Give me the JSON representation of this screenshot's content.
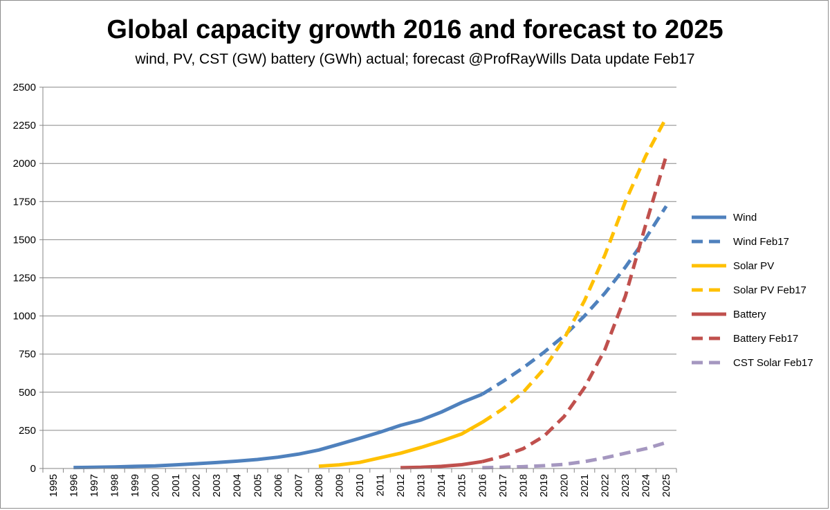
{
  "chart_data": {
    "type": "line",
    "title": "Global capacity growth 2016 and forecast to 2025",
    "subtitle": "wind, PV, CST (GW) battery (GWh) actual; forecast @ProfRayWills  Data update Feb17",
    "x": [
      "1995",
      "1996",
      "1997",
      "1998",
      "1999",
      "2000",
      "2001",
      "2002",
      "2003",
      "2004",
      "2005",
      "2006",
      "2007",
      "2008",
      "2009",
      "2010",
      "2011",
      "2012",
      "2013",
      "2014",
      "2015",
      "2016",
      "2017",
      "2018",
      "2019",
      "2020",
      "2021",
      "2022",
      "2023",
      "2024",
      "2025"
    ],
    "yticks": [
      0,
      250,
      500,
      750,
      1000,
      1250,
      1500,
      1750,
      2000,
      2250,
      2500
    ],
    "ylim": [
      0,
      2500
    ],
    "grid": true,
    "legend_position": "right",
    "series": [
      {
        "name": "Wind",
        "color": "#4f81bd",
        "dashed": false,
        "values": [
          null,
          6,
          8,
          10,
          14,
          17,
          24,
          31,
          39,
          48,
          59,
          74,
          94,
          121,
          159,
          198,
          238,
          283,
          318,
          370,
          433,
          487,
          null,
          null,
          null,
          null,
          null,
          null,
          null,
          null,
          null
        ]
      },
      {
        "name": "Wind Feb17",
        "color": "#4f81bd",
        "dashed": true,
        "values": [
          null,
          null,
          null,
          null,
          null,
          null,
          null,
          null,
          null,
          null,
          null,
          null,
          null,
          null,
          null,
          null,
          null,
          null,
          null,
          null,
          null,
          487,
          570,
          660,
          760,
          870,
          1000,
          1150,
          1320,
          1510,
          1720
        ]
      },
      {
        "name": "Solar PV",
        "color": "#ffc000",
        "dashed": false,
        "values": [
          null,
          null,
          null,
          null,
          null,
          null,
          null,
          null,
          null,
          null,
          null,
          null,
          null,
          15,
          24,
          40,
          70,
          100,
          138,
          180,
          227,
          303,
          null,
          null,
          null,
          null,
          null,
          null,
          null,
          null,
          null
        ]
      },
      {
        "name": "Solar PV Feb17",
        "color": "#ffc000",
        "dashed": true,
        "values": [
          null,
          null,
          null,
          null,
          null,
          null,
          null,
          null,
          null,
          null,
          null,
          null,
          null,
          null,
          null,
          null,
          null,
          null,
          null,
          null,
          null,
          303,
          390,
          500,
          650,
          850,
          1100,
          1400,
          1750,
          2050,
          2300
        ]
      },
      {
        "name": "Battery",
        "color": "#c0504d",
        "dashed": false,
        "values": [
          null,
          null,
          null,
          null,
          null,
          null,
          null,
          null,
          null,
          null,
          null,
          null,
          null,
          null,
          null,
          null,
          null,
          5,
          8,
          14,
          25,
          45,
          null,
          null,
          null,
          null,
          null,
          null,
          null,
          null,
          null
        ]
      },
      {
        "name": "Battery Feb17",
        "color": "#c0504d",
        "dashed": true,
        "values": [
          null,
          null,
          null,
          null,
          null,
          null,
          null,
          null,
          null,
          null,
          null,
          null,
          null,
          null,
          null,
          null,
          null,
          null,
          null,
          null,
          null,
          45,
          80,
          130,
          210,
          340,
          530,
          780,
          1130,
          1600,
          2050
        ]
      },
      {
        "name": "CST Solar Feb17",
        "color": "#a597c0",
        "dashed": true,
        "values": [
          null,
          null,
          null,
          null,
          null,
          null,
          null,
          null,
          null,
          null,
          null,
          null,
          null,
          null,
          null,
          null,
          null,
          null,
          null,
          null,
          null,
          5,
          8,
          12,
          18,
          27,
          45,
          70,
          100,
          130,
          170
        ]
      }
    ]
  }
}
